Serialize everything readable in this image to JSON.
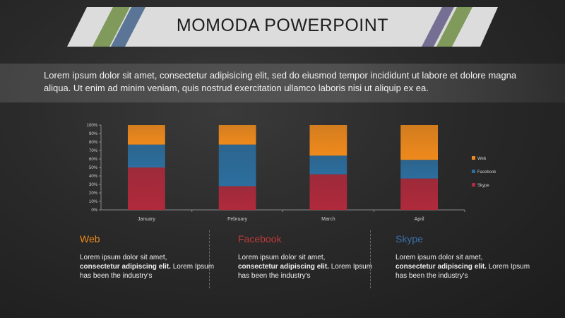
{
  "title": "MOMODA POWERPOINT",
  "intro": "Lorem ipsum dolor sit amet, consectetur adipisicing elit, sed do eiusmod tempor incididunt ut labore et dolore magna aliqua. Ut enim ad minim veniam, quis nostrud exercitation ullamco laboris nisi ut aliquip ex ea.",
  "colors": {
    "web": "#ef8a1c",
    "facebook": "#2c6e9e",
    "skype": "#b02a3c",
    "facebook_title": "#c03a3a",
    "skype_title": "#3a6fa8"
  },
  "chart_data": {
    "type": "bar",
    "stacked": true,
    "categories": [
      "January",
      "February",
      "March",
      "April"
    ],
    "series": [
      {
        "name": "Skype",
        "values": [
          50,
          28,
          42,
          37
        ]
      },
      {
        "name": "Facebook",
        "values": [
          27,
          49,
          22,
          22
        ]
      },
      {
        "name": "Web",
        "values": [
          23,
          23,
          36,
          41
        ]
      }
    ],
    "ylim": [
      0,
      100
    ],
    "yticks": [
      "0%",
      "10%",
      "20%",
      "30%",
      "40%",
      "50%",
      "60%",
      "70%",
      "80%",
      "90%",
      "100%"
    ],
    "legend_position": "right",
    "legend_order": [
      "Web",
      "Facebook",
      "Skype"
    ]
  },
  "columns": [
    {
      "heading": "Web",
      "text1": "Lorem ipsum dolor sit amet,",
      "bold": "consectetur adipiscing elit.",
      "text2": " Lorem Ipsum has been the industry's"
    },
    {
      "heading": "Facebook",
      "text1": "Lorem ipsum dolor sit amet,",
      "bold": "consectetur adipiscing elit.",
      "text2": " Lorem Ipsum has been the industry's"
    },
    {
      "heading": "Skype",
      "text1": "Lorem ipsum dolor sit amet,",
      "bold": "consectetur adipiscing elit.",
      "text2": " Lorem Ipsum has been the industry's"
    }
  ]
}
